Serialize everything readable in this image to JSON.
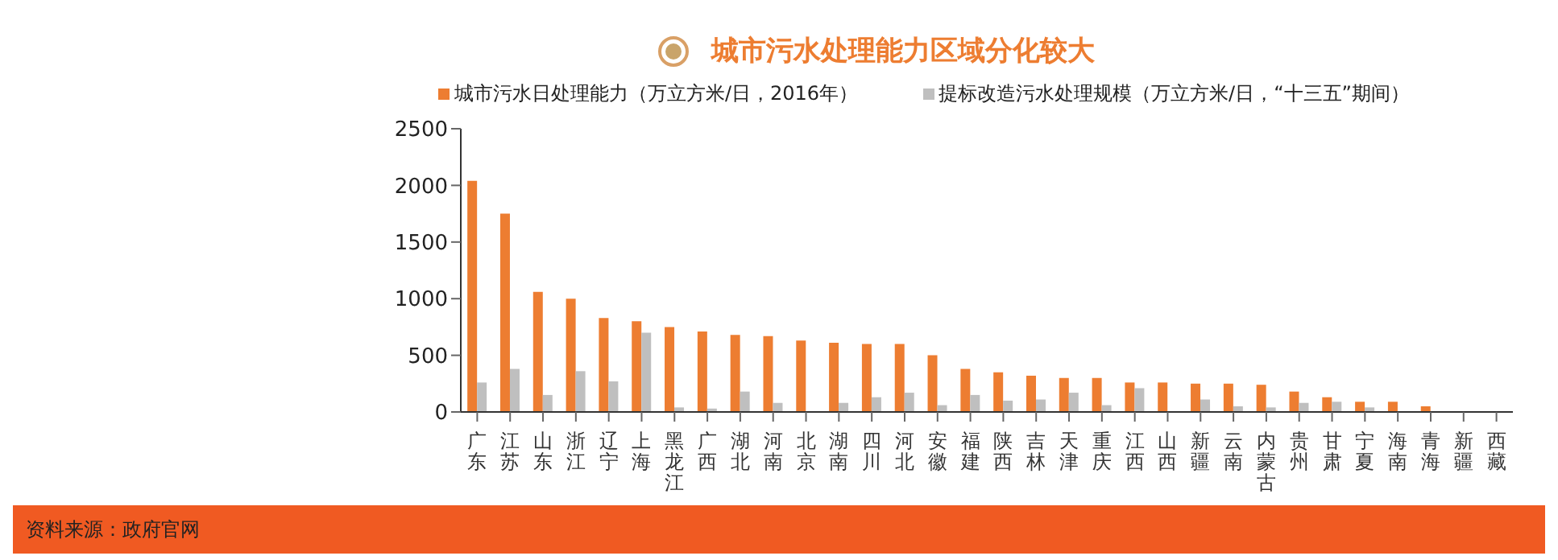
{
  "chart_data": {
    "type": "bar",
    "title": "城市污水处理能力区域分化较大",
    "categories": [
      "广东",
      "江苏",
      "山东",
      "浙江",
      "辽宁",
      "上海",
      "黑龙江",
      "广西",
      "湖北",
      "河南",
      "北京",
      "湖南",
      "四川",
      "河北",
      "安徽",
      "福建",
      "陕西",
      "吉林",
      "天津",
      "重庆",
      "江西",
      "山西",
      "新疆",
      "云南",
      "内蒙古",
      "贵州",
      "甘肃",
      "宁夏",
      "海南",
      "青海",
      "新疆",
      "西藏"
    ],
    "series": [
      {
        "name": "城市污水日处理能力（万立方米/日，2016年）",
        "color": "#ed7d31",
        "values": [
          2040,
          1750,
          1060,
          1000,
          830,
          800,
          750,
          710,
          680,
          670,
          630,
          610,
          600,
          600,
          500,
          380,
          350,
          320,
          300,
          300,
          260,
          260,
          250,
          250,
          240,
          180,
          130,
          90,
          90,
          50,
          0,
          0
        ]
      },
      {
        "name": "提标改造污水处理规模（万立方米/日，“十三五”期间）",
        "color": "#bfbfbf",
        "values": [
          260,
          380,
          150,
          360,
          270,
          700,
          40,
          30,
          180,
          80,
          0,
          80,
          130,
          170,
          60,
          150,
          100,
          110,
          170,
          60,
          210,
          0,
          110,
          50,
          40,
          80,
          90,
          40,
          0,
          0,
          0,
          0
        ]
      }
    ],
    "ylim": [
      0,
      2500
    ],
    "yticks": [
      0,
      500,
      1000,
      1500,
      2000,
      2500
    ],
    "legend": "top",
    "annotations": [
      "资料来源：政府官网"
    ]
  }
}
